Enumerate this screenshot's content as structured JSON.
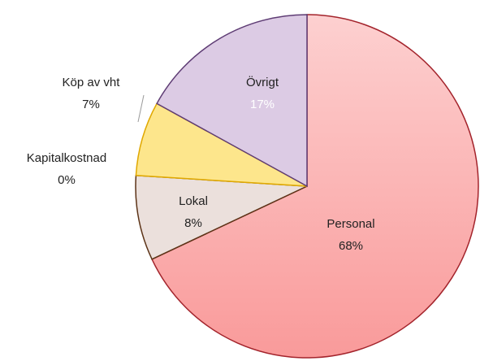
{
  "chart_data": {
    "type": "pie",
    "categories": [
      "Personal",
      "Lokal",
      "Kapitalkostnad",
      "Köp av vht",
      "Övrigt"
    ],
    "values": [
      68,
      8,
      0,
      7,
      17
    ],
    "value_labels": [
      "68%",
      "8%",
      "0%",
      "7%",
      "17%"
    ],
    "colors": [
      "#fbb0b0",
      "#ebe0dc",
      "#f5f0d8",
      "#fde68c",
      "#dccbe4"
    ],
    "border_colors": [
      "#a3232b",
      "#5c3317",
      "#c8a840",
      "#e0a800",
      "#5e3c74"
    ]
  }
}
